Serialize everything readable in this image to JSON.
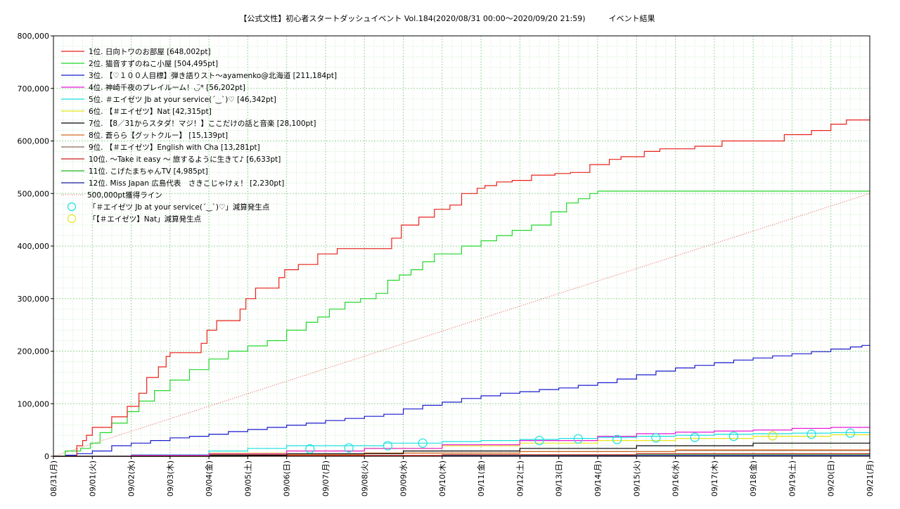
{
  "chart_data": {
    "type": "line",
    "title": "【公式文性】初心者スタートダッシュイベント Vol.184(2020/08/31 00:00〜2020/09/20 21:59)　　　イベント結果",
    "xlabel": "",
    "ylabel": "",
    "ylim": [
      0,
      800000
    ],
    "grid": true,
    "legend_position": "top-left",
    "y_ticks": [
      "0",
      "100,000",
      "200,000",
      "300,000",
      "400,000",
      "500,000",
      "600,000",
      "700,000",
      "800,000"
    ],
    "x_ticks": [
      "08/31(月)",
      "09/01(火)",
      "09/02(水)",
      "09/03(木)",
      "09/04(金)",
      "09/05(土)",
      "09/06(日)",
      "09/07(月)",
      "09/08(火)",
      "09/09(水)",
      "09/10(木)",
      "09/11(金)",
      "09/12(土)",
      "09/13(日)",
      "09/14(月)",
      "09/15(火)",
      "09/16(水)",
      "09/17(木)",
      "09/18(金)",
      "09/19(土)",
      "09/20(日)",
      "09/21(月)"
    ],
    "series": [
      {
        "name": "1位. 日向トワのお部屋 [648,002pt]",
        "color": "#e8201a",
        "x": [
          0,
          0.3,
          0.6,
          0.75,
          0.85,
          1.0,
          1.5,
          1.9,
          2.2,
          2.4,
          2.7,
          2.9,
          3.0,
          3.5,
          3.8,
          3.95,
          4.2,
          4.5,
          4.8,
          4.95,
          5.2,
          5.5,
          5.8,
          5.95,
          6.3,
          6.8,
          7.3,
          7.6,
          8.2,
          8.7,
          8.95,
          9.4,
          9.8,
          10.2,
          10.5,
          10.9,
          11.1,
          11.4,
          11.8,
          12.3,
          12.9,
          13.3,
          13.8,
          14.3,
          14.6,
          15.2,
          15.6,
          16.5,
          17.2,
          18.2,
          18.8,
          19.5,
          20.0,
          20.4,
          20.8,
          21.0
        ],
        "y": [
          0,
          0,
          20000,
          30000,
          40000,
          55000,
          75000,
          95000,
          120000,
          150000,
          170000,
          190000,
          197000,
          197000,
          215000,
          240000,
          258000,
          258000,
          280000,
          300000,
          320000,
          320000,
          340000,
          355000,
          365000,
          385000,
          395000,
          395000,
          395000,
          415000,
          440000,
          455000,
          470000,
          478000,
          500000,
          510000,
          515000,
          522000,
          525000,
          535000,
          538000,
          540000,
          555000,
          565000,
          570000,
          580000,
          585000,
          590000,
          600000,
          600000,
          612000,
          620000,
          632000,
          640000,
          640000,
          648002
        ]
      },
      {
        "name": "2位. 猫音すずのねこ小屋 [504,495pt]",
        "color": "#22d62a",
        "x": [
          0,
          0.3,
          0.7,
          0.95,
          1.2,
          1.5,
          1.9,
          2.2,
          2.6,
          3.0,
          3.5,
          4.0,
          4.5,
          5.0,
          5.5,
          6.0,
          6.5,
          6.8,
          7.1,
          7.5,
          7.9,
          8.3,
          8.6,
          8.9,
          9.2,
          9.5,
          9.8,
          10.5,
          11.0,
          11.4,
          11.8,
          12.3,
          12.8,
          13.2,
          13.5,
          13.8,
          14.0,
          21.0
        ],
        "y": [
          0,
          10000,
          15000,
          25000,
          45000,
          63000,
          85000,
          105000,
          125000,
          145000,
          165000,
          185000,
          200000,
          210000,
          220000,
          240000,
          255000,
          265000,
          280000,
          293000,
          300000,
          310000,
          335000,
          345000,
          355000,
          370000,
          385000,
          400000,
          410000,
          420000,
          430000,
          440000,
          465000,
          482000,
          490000,
          500000,
          504495,
          504495
        ]
      },
      {
        "name": "3位. 【♡１００人目標】弾き語りスト〜ayamenko@北海道 [211,184pt]",
        "color": "#1a1ad0",
        "x": [
          0,
          0.3,
          0.6,
          1.0,
          1.5,
          2.0,
          2.5,
          3.0,
          3.5,
          4.0,
          4.5,
          5.0,
          5.5,
          6.0,
          6.5,
          7.0,
          7.5,
          8.0,
          8.5,
          9.0,
          9.5,
          10.0,
          10.5,
          11.0,
          11.5,
          12.0,
          12.5,
          13.0,
          13.5,
          14.0,
          14.5,
          15.0,
          15.5,
          16.0,
          16.5,
          17.0,
          17.5,
          18.0,
          18.5,
          19.0,
          19.5,
          20.0,
          20.5,
          20.8,
          21.0
        ],
        "y": [
          0,
          2000,
          5000,
          10000,
          20000,
          25000,
          30000,
          35000,
          38000,
          42000,
          47000,
          51000,
          55000,
          59000,
          63000,
          68000,
          72000,
          76000,
          80000,
          90000,
          97000,
          103000,
          110000,
          115000,
          120000,
          123000,
          127000,
          130000,
          135000,
          140000,
          147000,
          155000,
          162000,
          168000,
          173000,
          178000,
          183000,
          187000,
          191000,
          195000,
          199000,
          204000,
          208000,
          211000,
          211184
        ]
      },
      {
        "name": "4位. 神崎千夜のプレイルーム！◡̈* [56,202pt]",
        "color": "#e81ad8",
        "x": [
          0,
          2,
          4,
          6,
          8,
          10,
          12,
          14,
          15,
          16,
          17,
          18,
          19,
          20,
          21
        ],
        "y": [
          0,
          2000,
          5000,
          10000,
          15000,
          22000,
          30000,
          38000,
          43000,
          46000,
          48000,
          50000,
          53000,
          55000,
          56202
        ]
      },
      {
        "name": "5位. ＃エイゼツ Jb at your service(´‿`)♡ [46,342pt]",
        "color": "#1ae0e0",
        "x": [
          0,
          2,
          4,
          5,
          6,
          7,
          8,
          8.5,
          9,
          10,
          11,
          12,
          13,
          14,
          15,
          16,
          17,
          18,
          19,
          20,
          21
        ],
        "y": [
          0,
          3000,
          10000,
          15000,
          20000,
          20000,
          20000,
          25000,
          25000,
          28000,
          30000,
          32000,
          34000,
          36000,
          38000,
          40000,
          42000,
          43000,
          44000,
          45000,
          46342
        ]
      },
      {
        "name": "6位. 【＃エイゼツ】Nat [42,315pt]",
        "color": "#e8e81a",
        "x": [
          0,
          2,
          4,
          6,
          8,
          10,
          12,
          14,
          16,
          18,
          20,
          21
        ],
        "y": [
          0,
          2000,
          6000,
          10000,
          15000,
          20000,
          25000,
          30000,
          34000,
          38000,
          41000,
          42315
        ]
      },
      {
        "name": "7位. 【8／31からスタダ！マジ！】ここだけの話と音楽 [28,100pt]",
        "color": "#000000",
        "x": [
          0,
          3,
          6,
          9,
          12,
          15,
          18,
          21
        ],
        "y": [
          0,
          2000,
          5000,
          10000,
          15000,
          20000,
          25000,
          28100
        ]
      },
      {
        "name": "8位. 蒼らら【グットクルー】 [15,139pt]",
        "color": "#d86a1a",
        "x": [
          0,
          4,
          8,
          12,
          16,
          21
        ],
        "y": [
          0,
          3000,
          6000,
          9000,
          12000,
          15139
        ]
      },
      {
        "name": "9位. 【＃エイゼツ】English with Cha [13,281pt]",
        "color": "#8a6a5a",
        "x": [
          0,
          4,
          8,
          12,
          16,
          21
        ],
        "y": [
          0,
          3000,
          6000,
          9000,
          11000,
          13281
        ]
      },
      {
        "name": "10位. 〜Take it easy 〜 旅するように生きて♪ [6,633pt]",
        "color": "#c81a1a",
        "x": [
          0,
          5,
          10,
          15,
          21
        ],
        "y": [
          0,
          1500,
          3000,
          5000,
          6633
        ]
      },
      {
        "name": "11位. こげたまちゃんTV [4,985pt]",
        "color": "#1ab41a",
        "x": [
          0,
          5,
          10,
          15,
          21
        ],
        "y": [
          0,
          1000,
          2500,
          4000,
          4985
        ]
      },
      {
        "name": "12位. Miss Japan 広島代表　さきこじゃけぇ！ [2,230pt]",
        "color": "#1a1aa0",
        "x": [
          0,
          5,
          10,
          15,
          21
        ],
        "y": [
          0,
          500,
          1200,
          1800,
          2230
        ]
      }
    ],
    "reference_line": {
      "name": "500,000pt獲得ライン",
      "color": "#e85a5a",
      "x": [
        0,
        21
      ],
      "y": [
        0,
        500000
      ]
    },
    "markers": [
      {
        "name": "「＃エイゼツ Jb at your service(´‿`)♡」減算発生点",
        "color": "#1ae0e0",
        "x": [
          6.6,
          7.6,
          8.6,
          9.5,
          12.5,
          13.5,
          14.5,
          15.5,
          16.5,
          17.5,
          18.5,
          19.5,
          20.5
        ],
        "y": [
          14000,
          16000,
          20000,
          25000,
          30000,
          33000,
          32000,
          35000,
          36000,
          38000,
          39000,
          42000,
          44000
        ]
      },
      {
        "name": "「【＃エイゼツ】Nat」減算発生点",
        "color": "#e8e81a",
        "x": [
          18.5
        ],
        "y": [
          39000
        ]
      }
    ]
  }
}
